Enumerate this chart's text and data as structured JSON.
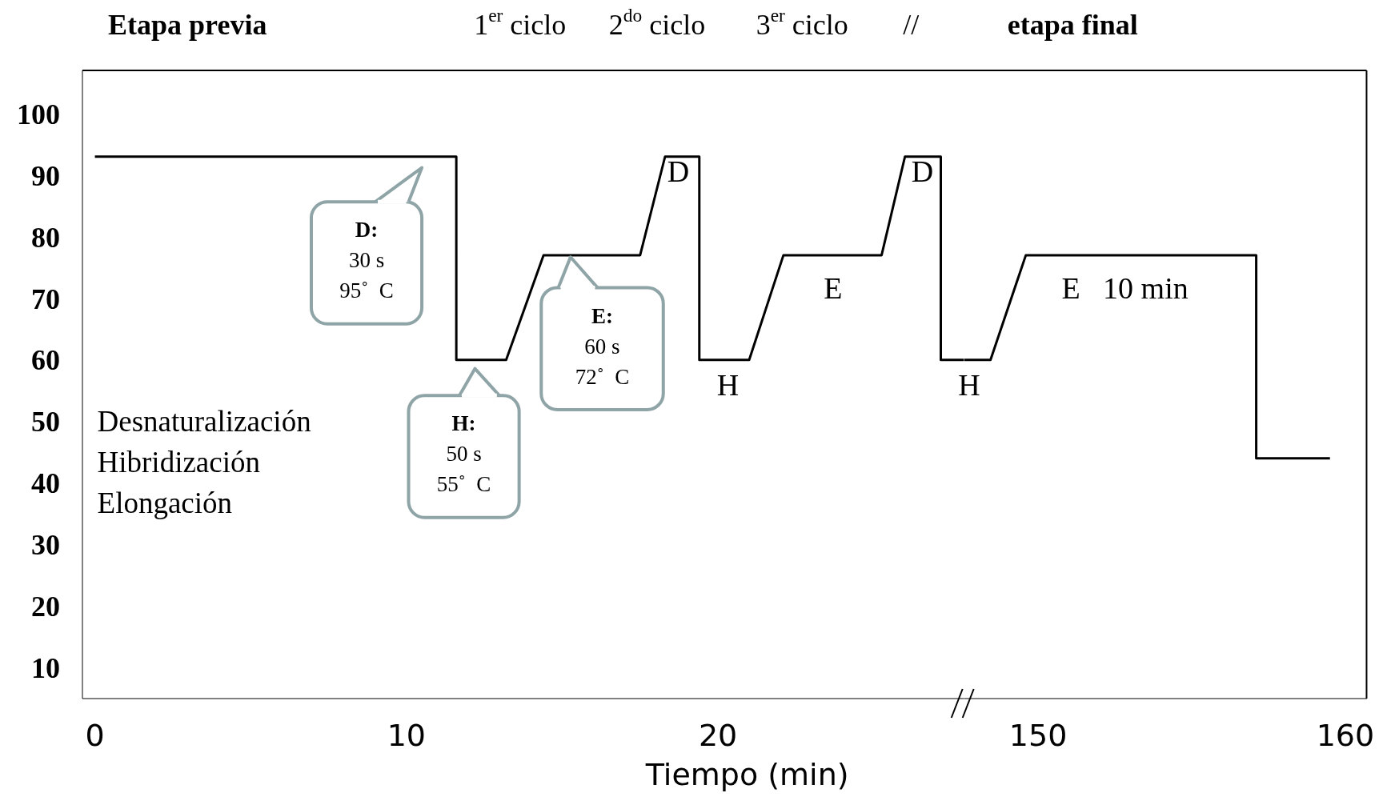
{
  "chart_data": [
    {
      "type": "line",
      "xlabel": "Tiempo (min)",
      "color": "#000000",
      "x": [
        0,
        11.6,
        11.6,
        13.2,
        14.4,
        17.5,
        18.3,
        19.4,
        19.4,
        21,
        22.1,
        25.25,
        26,
        27.15,
        27.15,
        27.9
      ],
      "values": [
        93,
        93,
        60,
        60,
        77,
        77,
        93,
        93,
        60,
        60,
        77,
        77,
        93,
        93,
        60,
        60
      ],
      "xlim": [
        -0.4,
        27.9
      ],
      "xticks": [
        0,
        10,
        20
      ],
      "ylim": [
        5,
        107
      ],
      "yticks": [
        10,
        20,
        30,
        40,
        50,
        60,
        70,
        80,
        90,
        100
      ],
      "annotations": [
        "Etapa previa",
        "1$^{er}$ ciclo",
        "2$^{do}$ ciclo",
        "3$^{er}$ ciclo",
        "//",
        "D",
        "D",
        "E",
        "H",
        "D:\n30 s\n95˚  C",
        "H:\n50 s\n55˚  C",
        "E:\n60 s\n72˚  C",
        "Desnaturalización\nHibridización\nElongación"
      ]
    },
    {
      "type": "line",
      "color": "#000000",
      "x": [
        147.6,
        148.45,
        149.6,
        157.1,
        157.1,
        159.5
      ],
      "values": [
        60,
        60,
        77,
        77,
        44,
        44
      ],
      "xlim": [
        147.6,
        160.7
      ],
      "xticks": [
        150,
        160
      ],
      "ylim": [
        5,
        107
      ],
      "tick_labels": "x",
      "annotations": [
        "etapa final",
        "H",
        "E   10 min"
      ]
    }
  ]
}
